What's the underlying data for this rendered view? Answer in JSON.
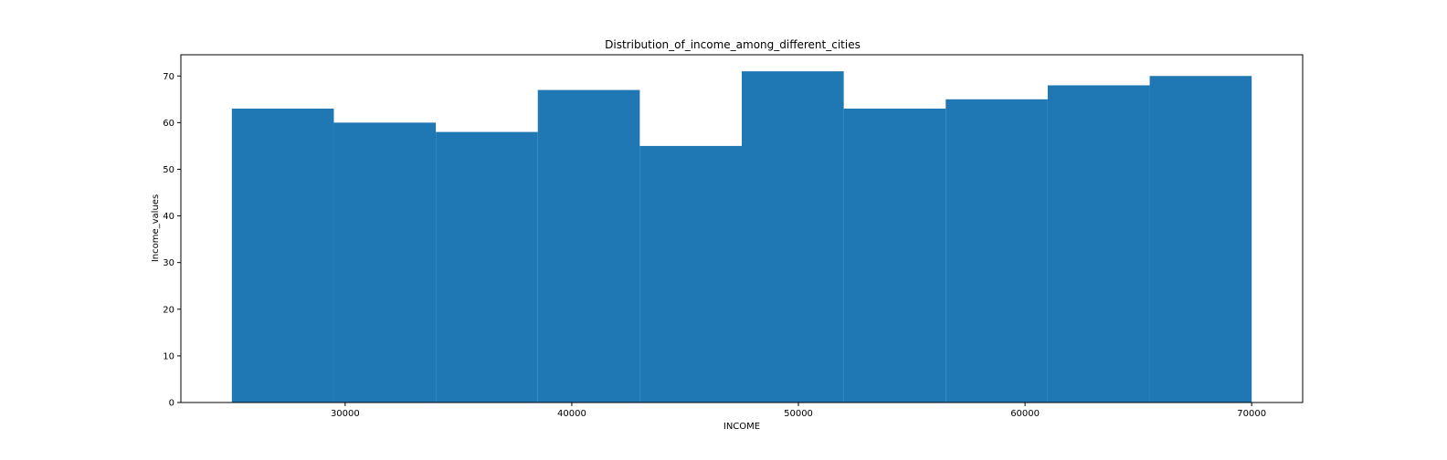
{
  "chart_data": {
    "type": "bar",
    "title": "Distribution_of_income_among_different_cities",
    "xlabel": "INCOME",
    "ylabel": "Income_values",
    "bar_color": "#1f77b4",
    "bins": [
      {
        "start": 25000,
        "end": 29500,
        "value": 63
      },
      {
        "start": 29500,
        "end": 34000,
        "value": 60
      },
      {
        "start": 34000,
        "end": 38500,
        "value": 58
      },
      {
        "start": 38500,
        "end": 43000,
        "value": 67
      },
      {
        "start": 43000,
        "end": 47500,
        "value": 55
      },
      {
        "start": 47500,
        "end": 52000,
        "value": 71
      },
      {
        "start": 52000,
        "end": 56500,
        "value": 63
      },
      {
        "start": 56500,
        "end": 61000,
        "value": 65
      },
      {
        "start": 61000,
        "end": 65500,
        "value": 68
      },
      {
        "start": 65500,
        "end": 70000,
        "value": 70
      }
    ],
    "xlim": [
      22750,
      72250
    ],
    "ylim": [
      0,
      74.55
    ],
    "xticks": [
      30000,
      40000,
      50000,
      60000,
      70000
    ],
    "yticks": [
      0,
      10,
      20,
      30,
      40,
      50,
      60,
      70
    ],
    "grid": false,
    "legend": "none"
  }
}
